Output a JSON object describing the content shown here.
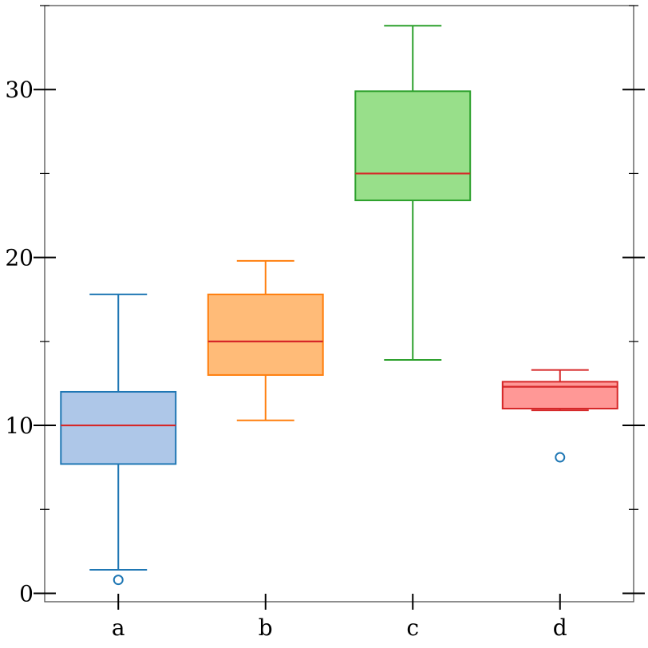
{
  "chart_data": {
    "type": "box",
    "title": "",
    "xlabel": "",
    "ylabel": "",
    "ylim": [
      -0.5,
      35
    ],
    "y_ticks_major": [
      0,
      10,
      20,
      30
    ],
    "y_ticks_minor": [
      5,
      15,
      25,
      35
    ],
    "grid": false,
    "median_color": "#d62728",
    "categories": [
      "a",
      "b",
      "c",
      "d"
    ],
    "boxes": [
      {
        "category": "a",
        "whisker_low": 1.4,
        "q1": 7.7,
        "median": 10.0,
        "q3": 12.0,
        "whisker_high": 17.8,
        "outliers": [
          0.8
        ],
        "fill": "#aec7e8",
        "edge": "#1f77b4",
        "outlier_color": "#1f77b4"
      },
      {
        "category": "b",
        "whisker_low": 10.3,
        "q1": 13.0,
        "median": 15.0,
        "q3": 17.8,
        "whisker_high": 19.8,
        "outliers": [],
        "fill": "#ffbb78",
        "edge": "#ff7f0e",
        "outlier_color": "#ff7f0e"
      },
      {
        "category": "c",
        "whisker_low": 13.9,
        "q1": 23.4,
        "median": 25.0,
        "q3": 29.9,
        "whisker_high": 33.8,
        "outliers": [],
        "fill": "#98df8a",
        "edge": "#2ca02c",
        "outlier_color": "#2ca02c"
      },
      {
        "category": "d",
        "whisker_low": 10.9,
        "q1": 11.0,
        "median": 12.3,
        "q3": 12.6,
        "whisker_high": 13.3,
        "outliers": [
          8.1
        ],
        "fill": "#ff9896",
        "edge": "#d62728",
        "outlier_color": "#1f77b4"
      }
    ]
  }
}
